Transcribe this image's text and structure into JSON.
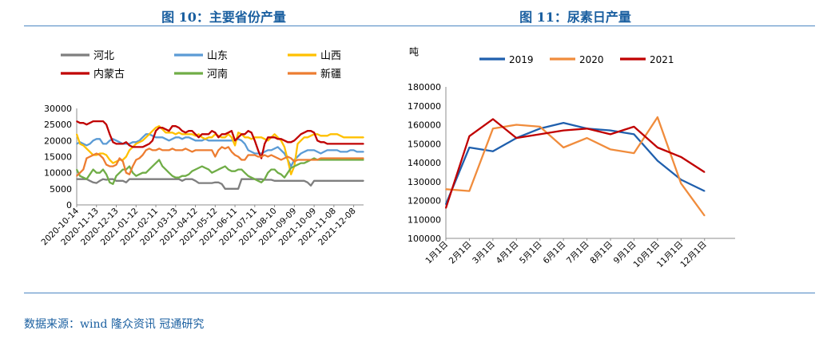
{
  "captions": {
    "fig10": "图 10：主要省份产量",
    "fig11": "图 11：尿素日产量",
    "source": "数据来源：wind  隆众资讯  冠通研究"
  },
  "chart_data": [
    {
      "type": "line",
      "title": "图 10：主要省份产量",
      "xlabel": "",
      "ylabel": "",
      "ylim": [
        0,
        30000
      ],
      "yticks": [
        0,
        5000,
        10000,
        15000,
        20000,
        25000,
        30000
      ],
      "tick_labels_x": [
        "2020-10-14",
        "2020-11-13",
        "2020-12-13",
        "2021-01-12",
        "2021-02-11",
        "2021-03-13",
        "2021-04-12",
        "2021-05-12",
        "2021-06-11",
        "2021-07-11",
        "2021-08-10",
        "2021-09-09",
        "2021-10-09",
        "2021-11-08",
        "2021-12-08"
      ],
      "x": [
        0,
        5,
        10,
        15,
        20,
        25,
        30,
        35,
        40,
        45,
        50,
        55,
        60,
        65,
        70,
        75,
        80,
        85,
        90,
        95,
        100,
        105,
        110,
        115,
        120,
        125,
        130,
        135,
        140,
        145,
        150,
        155,
        160,
        165,
        170,
        175,
        180,
        185,
        190,
        195,
        200,
        205,
        210,
        215,
        220,
        225,
        230,
        235,
        240,
        245,
        250,
        255,
        260,
        265,
        270,
        275,
        280,
        285,
        290,
        295,
        300,
        305,
        310,
        315,
        320,
        325,
        330,
        335,
        340,
        345,
        350,
        355,
        360,
        365,
        370,
        375,
        380,
        385,
        390,
        395,
        400,
        405,
        410,
        415,
        420,
        425,
        430,
        435
      ],
      "x_domain": [
        0,
        435
      ],
      "legend_position": "top",
      "series": [
        {
          "name": "河北",
          "color": "#7f7f7f",
          "values": [
            8000,
            8000,
            8000,
            8000,
            7500,
            7000,
            6800,
            7500,
            8000,
            7800,
            8000,
            8000,
            7500,
            7500,
            7500,
            7000,
            8000,
            8000,
            8000,
            8000,
            8000,
            8000,
            8000,
            8000,
            8000,
            8000,
            8000,
            8000,
            8000,
            8000,
            8000,
            8000,
            7500,
            8000,
            8000,
            8000,
            7500,
            6800,
            6800,
            6800,
            6800,
            6800,
            7000,
            7000,
            6500,
            5000,
            5000,
            5000,
            5000,
            5000,
            8000,
            8000,
            8000,
            8000,
            8000,
            8000,
            8000,
            7800,
            7800,
            7800,
            7500,
            7500,
            7500,
            7500,
            7500,
            7500,
            7500,
            7500,
            7500,
            7500,
            7000,
            6000,
            7500,
            7500,
            7500,
            7500,
            7500,
            7500,
            7500,
            7500,
            7500,
            7500,
            7500,
            7500,
            7500,
            7500,
            7500,
            7500
          ]
        },
        {
          "name": "山东",
          "color": "#5b9bd5",
          "values": [
            19000,
            19500,
            19000,
            18500,
            19000,
            20000,
            20500,
            20500,
            19000,
            19000,
            20000,
            20500,
            20000,
            19500,
            19000,
            19000,
            19000,
            19500,
            19500,
            20000,
            21000,
            22000,
            22000,
            21500,
            21000,
            21000,
            21000,
            20500,
            20000,
            20500,
            21000,
            21000,
            20500,
            21000,
            21000,
            20500,
            20000,
            20000,
            20000,
            20500,
            20000,
            20000,
            20000,
            20000,
            20000,
            20000,
            20000,
            20000,
            20000,
            20500,
            20000,
            19000,
            17000,
            16500,
            16000,
            16000,
            16000,
            16500,
            17000,
            17000,
            17500,
            18000,
            17000,
            16000,
            14000,
            12000,
            14000,
            15000,
            16000,
            16500,
            17000,
            17000,
            17000,
            16500,
            16000,
            16500,
            17000,
            17000,
            17000,
            17000,
            16500,
            16500,
            16500,
            17000,
            17000,
            16500,
            16500,
            16500
          ]
        },
        {
          "name": "山西",
          "color": "#ffc000",
          "values": [
            22000,
            19000,
            18500,
            17500,
            16500,
            15500,
            15500,
            16000,
            16000,
            15500,
            14000,
            13000,
            13500,
            14000,
            14000,
            15000,
            17000,
            18000,
            19000,
            19500,
            20000,
            21000,
            22000,
            23000,
            24000,
            24500,
            23500,
            22500,
            22500,
            22500,
            22000,
            22500,
            22000,
            22000,
            22000,
            22000,
            21500,
            22000,
            21000,
            20500,
            21000,
            21000,
            22000,
            21500,
            21000,
            21000,
            22000,
            21000,
            18500,
            22500,
            22000,
            21000,
            21000,
            20500,
            21000,
            21000,
            21000,
            20500,
            20000,
            21000,
            22000,
            21000,
            20000,
            18000,
            14000,
            9500,
            12000,
            19000,
            20000,
            21000,
            21000,
            21500,
            22000,
            22000,
            21500,
            21500,
            21500,
            22000,
            22000,
            22000,
            21500,
            21000,
            21000,
            21000,
            21000,
            21000,
            21000,
            21000
          ]
        },
        {
          "name": "内蒙古",
          "color": "#c00000",
          "values": [
            26000,
            25500,
            25500,
            25000,
            25500,
            26000,
            26000,
            26000,
            26000,
            25000,
            22000,
            19500,
            19000,
            19000,
            19000,
            19500,
            18500,
            18000,
            18000,
            18000,
            18000,
            18500,
            19000,
            20000,
            23000,
            24000,
            24000,
            23500,
            23000,
            24500,
            24500,
            24000,
            23000,
            22500,
            23000,
            23000,
            22000,
            21000,
            22000,
            22000,
            22000,
            23000,
            22500,
            21000,
            22000,
            22000,
            22500,
            23000,
            20000,
            21000,
            22000,
            22000,
            23000,
            22500,
            20000,
            17000,
            14500,
            19000,
            21000,
            21000,
            21000,
            20500,
            20500,
            20000,
            19500,
            19500,
            20000,
            21000,
            22000,
            22500,
            23000,
            23000,
            22500,
            20000,
            19500,
            19500,
            19000,
            19000,
            19000,
            19000,
            19000,
            19000,
            19000,
            19000,
            19000,
            19000,
            19000,
            19000
          ]
        },
        {
          "name": "河南",
          "color": "#70ad47",
          "values": [
            11000,
            9000,
            8500,
            8000,
            9500,
            11000,
            10000,
            10000,
            11000,
            9500,
            7000,
            6500,
            9000,
            10000,
            11000,
            11000,
            12000,
            10000,
            9000,
            9500,
            10000,
            10000,
            11000,
            12000,
            13000,
            14000,
            12000,
            11000,
            10000,
            9000,
            8500,
            8500,
            9000,
            9000,
            9500,
            10500,
            11000,
            11500,
            12000,
            11500,
            11000,
            10000,
            10500,
            11000,
            11500,
            12000,
            11000,
            10500,
            10500,
            11000,
            11000,
            10000,
            9000,
            8500,
            8000,
            7500,
            7000,
            8000,
            10000,
            11000,
            11000,
            10000,
            9500,
            8500,
            10000,
            11500,
            12000,
            12500,
            13000,
            13000,
            13500,
            14000,
            14500,
            14000,
            14000,
            14000,
            14000,
            14000,
            14000,
            14000,
            14000,
            14000,
            14000,
            14000,
            14000,
            14000,
            14000,
            14000
          ]
        },
        {
          "name": "新疆",
          "color": "#ed7d31",
          "values": [
            9000,
            10000,
            11000,
            14500,
            15000,
            15500,
            16000,
            15500,
            14500,
            12500,
            12000,
            12000,
            12500,
            14500,
            13500,
            10000,
            9500,
            12000,
            14000,
            14500,
            15500,
            17000,
            17500,
            17000,
            17000,
            17500,
            17000,
            17000,
            17000,
            17500,
            17000,
            17000,
            17000,
            17500,
            17000,
            16500,
            17000,
            17000,
            17000,
            17000,
            17000,
            17000,
            15000,
            17000,
            18000,
            17500,
            18000,
            16500,
            15500,
            15000,
            14000,
            14000,
            15500,
            15500,
            15500,
            15000,
            15000,
            15500,
            15000,
            15500,
            15000,
            14500,
            14000,
            14500,
            15000,
            14500,
            13500,
            14000,
            14000,
            14000,
            14000,
            14000,
            14000,
            14000,
            14500,
            14500,
            14500,
            14500,
            14500,
            14500,
            14500,
            14500,
            14500,
            14500,
            14500,
            14500,
            14500,
            14500
          ]
        }
      ]
    },
    {
      "type": "line",
      "title": "图 11：尿素日产量",
      "xlabel": "",
      "ylabel": "吨",
      "ylim": [
        100000,
        180000
      ],
      "yticks": [
        100000,
        110000,
        120000,
        130000,
        140000,
        150000,
        160000,
        170000,
        180000
      ],
      "tick_labels_x": [
        "1月1日",
        "2月1日",
        "3月1日",
        "4月1日",
        "5月1日",
        "6月1日",
        "7月1日",
        "8月1日",
        "9月1日",
        "10月1日",
        "11月1日",
        "12月1日"
      ],
      "x": [
        0,
        1,
        2,
        3,
        4,
        5,
        6,
        7,
        8,
        9,
        10,
        11
      ],
      "x_domain": [
        0,
        12.3
      ],
      "legend_position": "top",
      "series": [
        {
          "name": "2019",
          "color": "#1f5fad",
          "values": [
            118000,
            148000,
            146000,
            153000,
            158000,
            161000,
            158000,
            157000,
            155000,
            141000,
            131000,
            125000
          ]
        },
        {
          "name": "2020",
          "color": "#f08c3c",
          "values": [
            126000,
            125000,
            158000,
            160000,
            159000,
            148000,
            153000,
            147000,
            145000,
            164000,
            129000,
            112000
          ]
        },
        {
          "name": "2021",
          "color": "#c00000",
          "values": [
            116000,
            154000,
            163000,
            153000,
            155000,
            157000,
            158000,
            155000,
            159000,
            148000,
            143000,
            135000
          ]
        }
      ]
    }
  ]
}
